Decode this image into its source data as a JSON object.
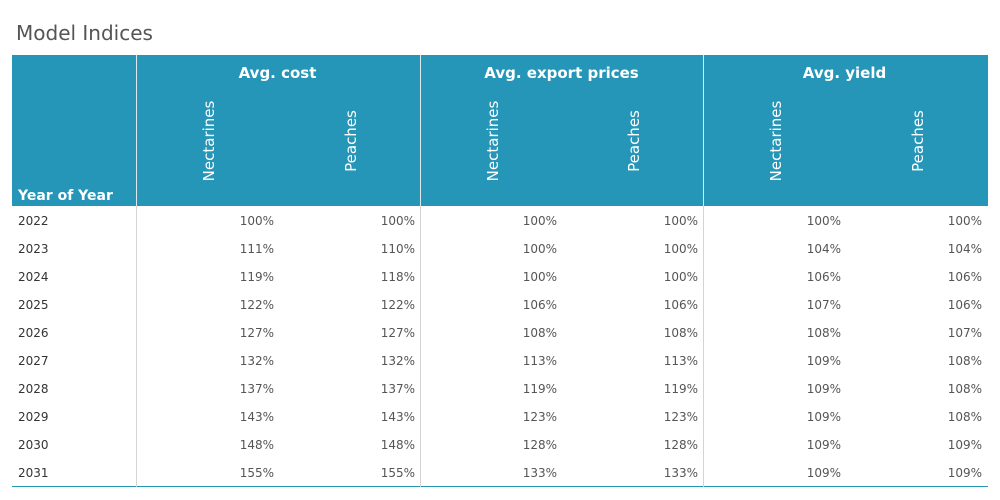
{
  "title": "Model Indices",
  "chart_data": {
    "type": "table",
    "title": "Model Indices",
    "row_header": "Year of Year",
    "groups": [
      {
        "name": "Avg. cost",
        "columns": [
          "Nectarines",
          "Peaches"
        ]
      },
      {
        "name": "Avg. export prices",
        "columns": [
          "Nectarines",
          "Peaches"
        ]
      },
      {
        "name": "Avg. yield",
        "columns": [
          "Nectarines",
          "Peaches"
        ]
      }
    ],
    "rows": [
      {
        "year": "2022",
        "values": [
          "100%",
          "100%",
          "100%",
          "100%",
          "100%",
          "100%"
        ]
      },
      {
        "year": "2023",
        "values": [
          "111%",
          "110%",
          "100%",
          "100%",
          "104%",
          "104%"
        ]
      },
      {
        "year": "2024",
        "values": [
          "119%",
          "118%",
          "100%",
          "100%",
          "106%",
          "106%"
        ]
      },
      {
        "year": "2025",
        "values": [
          "122%",
          "122%",
          "106%",
          "106%",
          "107%",
          "106%"
        ]
      },
      {
        "year": "2026",
        "values": [
          "127%",
          "127%",
          "108%",
          "108%",
          "108%",
          "107%"
        ]
      },
      {
        "year": "2027",
        "values": [
          "132%",
          "132%",
          "113%",
          "113%",
          "109%",
          "108%"
        ]
      },
      {
        "year": "2028",
        "values": [
          "137%",
          "137%",
          "119%",
          "119%",
          "109%",
          "108%"
        ]
      },
      {
        "year": "2029",
        "values": [
          "143%",
          "143%",
          "123%",
          "123%",
          "109%",
          "108%"
        ]
      },
      {
        "year": "2030",
        "values": [
          "148%",
          "148%",
          "128%",
          "128%",
          "109%",
          "109%"
        ]
      },
      {
        "year": "2031",
        "values": [
          "155%",
          "155%",
          "133%",
          "133%",
          "109%",
          "109%"
        ]
      }
    ]
  }
}
